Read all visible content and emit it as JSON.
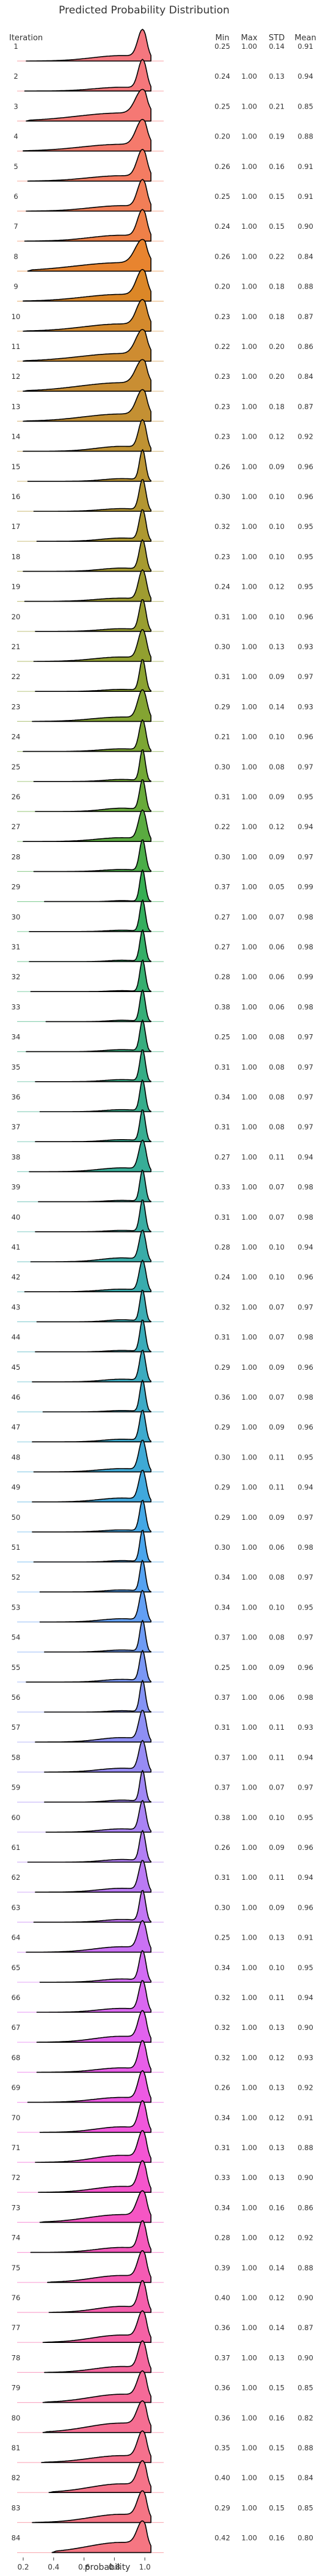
{
  "chart_data": {
    "type": "ridgeline",
    "title": "Predicted Probability Distribution",
    "row_header": "Iteration",
    "stat_headers": [
      "Min",
      "Max",
      "STD",
      "Mean"
    ],
    "xlabel": "probability",
    "xlim": [
      0.2,
      1.1
    ],
    "xticks": [
      0.2,
      0.4,
      0.6,
      0.8,
      1.0
    ],
    "xtick_labels": [
      "0.2",
      "0.4",
      "0.6",
      "0.8",
      "1.0"
    ],
    "rows": [
      {
        "label": "1",
        "min": "0.25",
        "max": "1.00",
        "std": "0.14",
        "mean": "0.91",
        "color": "#f5777f"
      },
      {
        "label": "2",
        "min": "0.24",
        "max": "1.00",
        "std": "0.13",
        "mean": "0.94",
        "color": "#f5777b"
      },
      {
        "label": "3",
        "min": "0.25",
        "max": "1.00",
        "std": "0.21",
        "mean": "0.85",
        "color": "#f57874"
      },
      {
        "label": "4",
        "min": "0.20",
        "max": "1.00",
        "std": "0.19",
        "mean": "0.88",
        "color": "#f57a6c"
      },
      {
        "label": "5",
        "min": "0.26",
        "max": "1.00",
        "std": "0.16",
        "mean": "0.91",
        "color": "#f47c62"
      },
      {
        "label": "6",
        "min": "0.25",
        "max": "1.00",
        "std": "0.15",
        "mean": "0.91",
        "color": "#f27e57"
      },
      {
        "label": "7",
        "min": "0.24",
        "max": "1.00",
        "std": "0.15",
        "mean": "0.90",
        "color": "#ef8048"
      },
      {
        "label": "8",
        "min": "0.26",
        "max": "1.00",
        "std": "0.22",
        "mean": "0.84",
        "color": "#e8842f"
      },
      {
        "label": "9",
        "min": "0.20",
        "max": "1.00",
        "std": "0.18",
        "mean": "0.88",
        "color": "#dc8727"
      },
      {
        "label": "10",
        "min": "0.23",
        "max": "1.00",
        "std": "0.18",
        "mean": "0.87",
        "color": "#d48a2d"
      },
      {
        "label": "11",
        "min": "0.22",
        "max": "1.00",
        "std": "0.20",
        "mean": "0.86",
        "color": "#ce8c31"
      },
      {
        "label": "12",
        "min": "0.23",
        "max": "1.00",
        "std": "0.20",
        "mean": "0.84",
        "color": "#c98e33"
      },
      {
        "label": "13",
        "min": "0.23",
        "max": "1.00",
        "std": "0.18",
        "mean": "0.87",
        "color": "#c49033"
      },
      {
        "label": "14",
        "min": "0.23",
        "max": "1.00",
        "std": "0.12",
        "mean": "0.92",
        "color": "#bf9232"
      },
      {
        "label": "15",
        "min": "0.26",
        "max": "1.00",
        "std": "0.09",
        "mean": "0.96",
        "color": "#ba9432"
      },
      {
        "label": "16",
        "min": "0.30",
        "max": "1.00",
        "std": "0.10",
        "mean": "0.96",
        "color": "#b39631"
      },
      {
        "label": "17",
        "min": "0.32",
        "max": "1.00",
        "std": "0.10",
        "mean": "0.95",
        "color": "#ad9830"
      },
      {
        "label": "18",
        "min": "0.23",
        "max": "1.00",
        "std": "0.10",
        "mean": "0.95",
        "color": "#a69a30"
      },
      {
        "label": "19",
        "min": "0.24",
        "max": "1.00",
        "std": "0.12",
        "mean": "0.95",
        "color": "#9f9c30"
      },
      {
        "label": "20",
        "min": "0.31",
        "max": "1.00",
        "std": "0.10",
        "mean": "0.96",
        "color": "#999e30"
      },
      {
        "label": "21",
        "min": "0.30",
        "max": "1.00",
        "std": "0.13",
        "mean": "0.93",
        "color": "#92a030"
      },
      {
        "label": "22",
        "min": "0.31",
        "max": "1.00",
        "std": "0.09",
        "mean": "0.97",
        "color": "#8ba231"
      },
      {
        "label": "23",
        "min": "0.29",
        "max": "1.00",
        "std": "0.14",
        "mean": "0.93",
        "color": "#84a432"
      },
      {
        "label": "24",
        "min": "0.21",
        "max": "1.00",
        "std": "0.10",
        "mean": "0.96",
        "color": "#7ca633"
      },
      {
        "label": "25",
        "min": "0.30",
        "max": "1.00",
        "std": "0.08",
        "mean": "0.97",
        "color": "#72a836"
      },
      {
        "label": "26",
        "min": "0.31",
        "max": "1.00",
        "std": "0.09",
        "mean": "0.95",
        "color": "#67aa3a"
      },
      {
        "label": "27",
        "min": "0.22",
        "max": "1.00",
        "std": "0.12",
        "mean": "0.94",
        "color": "#5aab40"
      },
      {
        "label": "28",
        "min": "0.30",
        "max": "1.00",
        "std": "0.09",
        "mean": "0.97",
        "color": "#4bad48"
      },
      {
        "label": "29",
        "min": "0.37",
        "max": "1.00",
        "std": "0.05",
        "mean": "0.99",
        "color": "#36ae52"
      },
      {
        "label": "30",
        "min": "0.27",
        "max": "1.00",
        "std": "0.07",
        "mean": "0.98",
        "color": "#33ae5d"
      },
      {
        "label": "31",
        "min": "0.27",
        "max": "1.00",
        "std": "0.06",
        "mean": "0.98",
        "color": "#34ae66"
      },
      {
        "label": "32",
        "min": "0.28",
        "max": "1.00",
        "std": "0.06",
        "mean": "0.99",
        "color": "#35ae6f"
      },
      {
        "label": "33",
        "min": "0.38",
        "max": "1.00",
        "std": "0.06",
        "mean": "0.98",
        "color": "#35ae77"
      },
      {
        "label": "34",
        "min": "0.25",
        "max": "1.00",
        "std": "0.08",
        "mean": "0.97",
        "color": "#36ad7e"
      },
      {
        "label": "35",
        "min": "0.31",
        "max": "1.00",
        "std": "0.08",
        "mean": "0.97",
        "color": "#36ad85"
      },
      {
        "label": "36",
        "min": "0.34",
        "max": "1.00",
        "std": "0.08",
        "mean": "0.97",
        "color": "#36ad8b"
      },
      {
        "label": "37",
        "min": "0.31",
        "max": "1.00",
        "std": "0.08",
        "mean": "0.97",
        "color": "#37ad91"
      },
      {
        "label": "38",
        "min": "0.27",
        "max": "1.00",
        "std": "0.11",
        "mean": "0.94",
        "color": "#37ad97"
      },
      {
        "label": "39",
        "min": "0.33",
        "max": "1.00",
        "std": "0.07",
        "mean": "0.98",
        "color": "#38ad9c"
      },
      {
        "label": "40",
        "min": "0.31",
        "max": "1.00",
        "std": "0.07",
        "mean": "0.98",
        "color": "#38aca2"
      },
      {
        "label": "41",
        "min": "0.28",
        "max": "1.00",
        "std": "0.10",
        "mean": "0.94",
        "color": "#39aca8"
      },
      {
        "label": "42",
        "min": "0.24",
        "max": "1.00",
        "std": "0.10",
        "mean": "0.96",
        "color": "#39acad"
      },
      {
        "label": "43",
        "min": "0.32",
        "max": "1.00",
        "std": "0.07",
        "mean": "0.97",
        "color": "#3aacb3"
      },
      {
        "label": "44",
        "min": "0.31",
        "max": "1.00",
        "std": "0.07",
        "mean": "0.98",
        "color": "#3aabb9"
      },
      {
        "label": "45",
        "min": "0.29",
        "max": "1.00",
        "std": "0.09",
        "mean": "0.96",
        "color": "#3babbf"
      },
      {
        "label": "46",
        "min": "0.36",
        "max": "1.00",
        "std": "0.07",
        "mean": "0.98",
        "color": "#3caac6"
      },
      {
        "label": "47",
        "min": "0.29",
        "max": "1.00",
        "std": "0.09",
        "mean": "0.96",
        "color": "#3daacd"
      },
      {
        "label": "48",
        "min": "0.30",
        "max": "1.00",
        "std": "0.11",
        "mean": "0.95",
        "color": "#3ea9d5"
      },
      {
        "label": "49",
        "min": "0.29",
        "max": "1.00",
        "std": "0.11",
        "mean": "0.94",
        "color": "#40a8dd"
      },
      {
        "label": "50",
        "min": "0.29",
        "max": "1.00",
        "std": "0.09",
        "mean": "0.97",
        "color": "#43a7e5"
      },
      {
        "label": "51",
        "min": "0.30",
        "max": "1.00",
        "std": "0.06",
        "mean": "0.98",
        "color": "#4aa5ec"
      },
      {
        "label": "52",
        "min": "0.34",
        "max": "1.00",
        "std": "0.08",
        "mean": "0.97",
        "color": "#55a2f1"
      },
      {
        "label": "53",
        "min": "0.34",
        "max": "1.00",
        "std": "0.10",
        "mean": "0.95",
        "color": "#629ff4"
      },
      {
        "label": "54",
        "min": "0.37",
        "max": "1.00",
        "std": "0.08",
        "mean": "0.97",
        "color": "#6e9bf4"
      },
      {
        "label": "55",
        "min": "0.25",
        "max": "1.00",
        "std": "0.09",
        "mean": "0.96",
        "color": "#7a97f4"
      },
      {
        "label": "56",
        "min": "0.37",
        "max": "1.00",
        "std": "0.06",
        "mean": "0.98",
        "color": "#8493f4"
      },
      {
        "label": "57",
        "min": "0.31",
        "max": "1.00",
        "std": "0.11",
        "mean": "0.93",
        "color": "#8e8ff4"
      },
      {
        "label": "58",
        "min": "0.37",
        "max": "1.00",
        "std": "0.11",
        "mean": "0.94",
        "color": "#978bf4"
      },
      {
        "label": "59",
        "min": "0.37",
        "max": "1.00",
        "std": "0.07",
        "mean": "0.97",
        "color": "#a087f4"
      },
      {
        "label": "60",
        "min": "0.38",
        "max": "1.00",
        "std": "0.10",
        "mean": "0.95",
        "color": "#a983f4"
      },
      {
        "label": "61",
        "min": "0.26",
        "max": "1.00",
        "std": "0.09",
        "mean": "0.96",
        "color": "#b27ff4"
      },
      {
        "label": "62",
        "min": "0.31",
        "max": "1.00",
        "std": "0.11",
        "mean": "0.94",
        "color": "#ba7af4"
      },
      {
        "label": "63",
        "min": "0.30",
        "max": "1.00",
        "std": "0.09",
        "mean": "0.96",
        "color": "#c276f4"
      },
      {
        "label": "64",
        "min": "0.25",
        "max": "1.00",
        "std": "0.13",
        "mean": "0.91",
        "color": "#ca71f4"
      },
      {
        "label": "65",
        "min": "0.34",
        "max": "1.00",
        "std": "0.10",
        "mean": "0.95",
        "color": "#d26cf3"
      },
      {
        "label": "66",
        "min": "0.32",
        "max": "1.00",
        "std": "0.11",
        "mean": "0.94",
        "color": "#da67f1"
      },
      {
        "label": "67",
        "min": "0.32",
        "max": "1.00",
        "std": "0.13",
        "mean": "0.90",
        "color": "#e162ee"
      },
      {
        "label": "68",
        "min": "0.32",
        "max": "1.00",
        "std": "0.12",
        "mean": "0.93",
        "color": "#e85ee9"
      },
      {
        "label": "69",
        "min": "0.26",
        "max": "1.00",
        "std": "0.13",
        "mean": "0.92",
        "color": "#ed5ae3"
      },
      {
        "label": "70",
        "min": "0.34",
        "max": "1.00",
        "std": "0.12",
        "mean": "0.91",
        "color": "#f157dc"
      },
      {
        "label": "71",
        "min": "0.31",
        "max": "1.00",
        "std": "0.13",
        "mean": "0.88",
        "color": "#f455d4"
      },
      {
        "label": "72",
        "min": "0.33",
        "max": "1.00",
        "std": "0.13",
        "mean": "0.90",
        "color": "#f555cc"
      },
      {
        "label": "73",
        "min": "0.34",
        "max": "1.00",
        "std": "0.16",
        "mean": "0.86",
        "color": "#f556c4"
      },
      {
        "label": "74",
        "min": "0.28",
        "max": "1.00",
        "std": "0.12",
        "mean": "0.92",
        "color": "#f558bc"
      },
      {
        "label": "75",
        "min": "0.39",
        "max": "1.00",
        "std": "0.14",
        "mean": "0.88",
        "color": "#f55bb4"
      },
      {
        "label": "76",
        "min": "0.40",
        "max": "1.00",
        "std": "0.12",
        "mean": "0.90",
        "color": "#f55eac"
      },
      {
        "label": "77",
        "min": "0.36",
        "max": "1.00",
        "std": "0.14",
        "mean": "0.87",
        "color": "#f562a5"
      },
      {
        "label": "78",
        "min": "0.37",
        "max": "1.00",
        "std": "0.13",
        "mean": "0.90",
        "color": "#f5669e"
      },
      {
        "label": "79",
        "min": "0.36",
        "max": "1.00",
        "std": "0.15",
        "mean": "0.85",
        "color": "#f56a98"
      },
      {
        "label": "80",
        "min": "0.36",
        "max": "1.00",
        "std": "0.16",
        "mean": "0.82",
        "color": "#f56e92"
      },
      {
        "label": "81",
        "min": "0.35",
        "max": "1.00",
        "std": "0.15",
        "mean": "0.88",
        "color": "#f5718d"
      },
      {
        "label": "82",
        "min": "0.40",
        "max": "1.00",
        "std": "0.15",
        "mean": "0.84",
        "color": "#f57389"
      },
      {
        "label": "83",
        "min": "0.29",
        "max": "1.00",
        "std": "0.15",
        "mean": "0.85",
        "color": "#f57585"
      },
      {
        "label": "84",
        "min": "0.42",
        "max": "1.00",
        "std": "0.16",
        "mean": "0.80",
        "color": "#f57682"
      }
    ]
  }
}
